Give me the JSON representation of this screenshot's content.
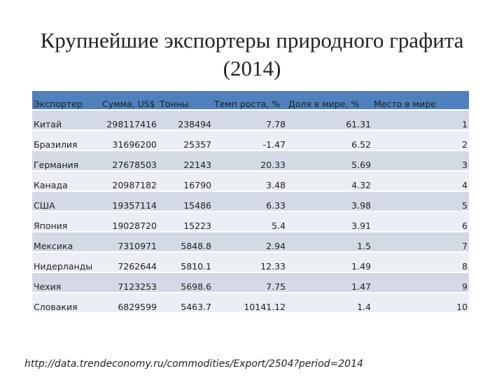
{
  "title": {
    "line1": "Крупнейшие экспортеры природного графита",
    "line2": "(2014)"
  },
  "table": {
    "headers": [
      "Экспортер",
      "Сумма, US$",
      "Тонны",
      "Темп роста, %",
      "Доля в мире, %",
      "Место в мире"
    ],
    "rows": [
      [
        "Китай",
        "298117416",
        "238494",
        "7.78",
        "61.31",
        "1"
      ],
      [
        "Бразилия",
        "31696200",
        "25357",
        "-1.47",
        "6.52",
        "2"
      ],
      [
        "Германия",
        "27678503",
        "22143",
        "20.33",
        "5.69",
        "3"
      ],
      [
        "Канада",
        "20987182",
        "16790",
        "3.48",
        "4.32",
        "4"
      ],
      [
        "США",
        "19357114",
        "15486",
        "6.33",
        "3.98",
        "5"
      ],
      [
        "Япония",
        "19028720",
        "15223",
        "5.4",
        "3.91",
        "6"
      ],
      [
        "Мексика",
        "7310971",
        "5848.8",
        "2.94",
        "1.5",
        "7"
      ],
      [
        "Нидерланды",
        "7262644",
        "5810.1",
        "12.33",
        "1.49",
        "8"
      ],
      [
        "Чехия",
        "7123253",
        "5698.6",
        "7.75",
        "1.47",
        "9"
      ],
      [
        "Словакия",
        "6829599",
        "5463.7",
        "10141.12",
        "1.4",
        "10"
      ]
    ]
  },
  "source": "http://data.trendeconomy.ru/commodities/Export/2504?period=2014",
  "colors": {
    "header_bg": "#4f81bd",
    "row_odd_bg": "#d3dae6",
    "row_even_bg": "#ebeef4"
  }
}
